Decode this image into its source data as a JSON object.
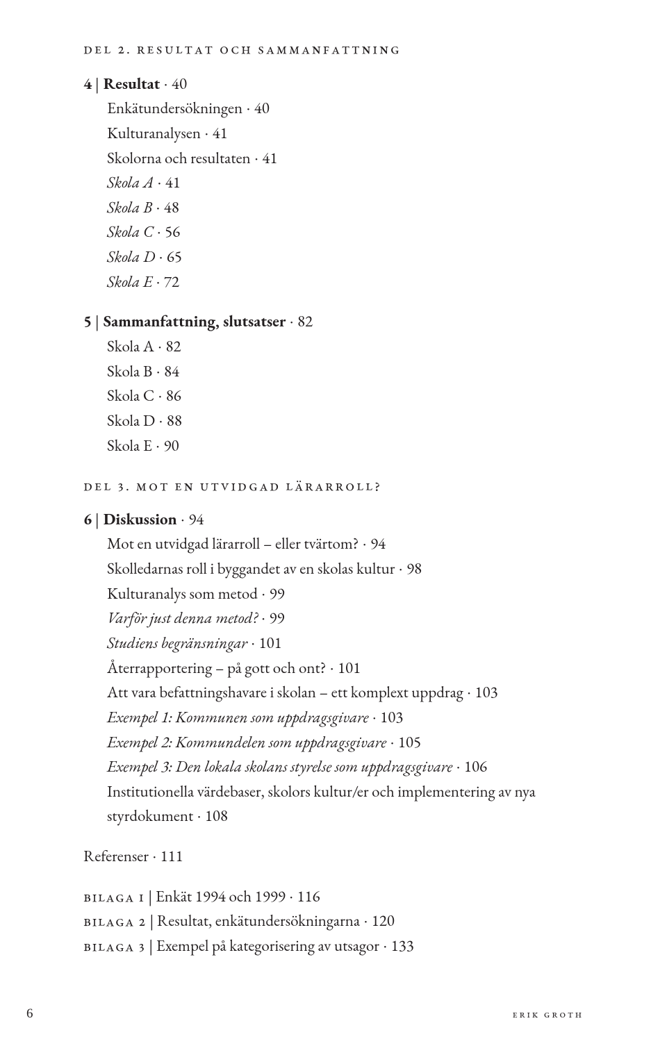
{
  "dot": "·",
  "pipe": "|",
  "part2": {
    "label": "del 2. resultat och sammanfattning"
  },
  "ch4": {
    "num": "4",
    "title": "Resultat",
    "page": "40",
    "items": [
      {
        "label": "Enkätundersökningen",
        "page": "40",
        "italic": false
      },
      {
        "label": "Kulturanalysen",
        "page": "41",
        "italic": false
      },
      {
        "label": "Skolorna och resultaten",
        "page": "41",
        "italic": false
      },
      {
        "label": "Skola A",
        "page": "41",
        "italic": true
      },
      {
        "label": "Skola B",
        "page": "48",
        "italic": true
      },
      {
        "label": "Skola C",
        "page": "56",
        "italic": true
      },
      {
        "label": "Skola D",
        "page": "65",
        "italic": true
      },
      {
        "label": "Skola E",
        "page": "72",
        "italic": true
      }
    ]
  },
  "ch5": {
    "num": "5",
    "title": "Sammanfattning, slutsatser",
    "page": "82",
    "items": [
      {
        "label": "Skola A",
        "page": "82"
      },
      {
        "label": "Skola B",
        "page": "84"
      },
      {
        "label": "Skola C",
        "page": "86"
      },
      {
        "label": "Skola D",
        "page": "88"
      },
      {
        "label": "Skola E",
        "page": "90"
      }
    ]
  },
  "part3": {
    "label": "del 3. mot en utvidgad lärarroll?"
  },
  "ch6": {
    "num": "6",
    "title": "Diskussion",
    "page": "94",
    "items": [
      {
        "label": "Mot en utvidgad lärarroll – eller tvärtom?",
        "page": "94",
        "italic": false
      },
      {
        "label": "Skolledarnas roll i byggandet av en skolas kultur",
        "page": "98",
        "italic": false
      },
      {
        "label": "Kulturanalys som metod",
        "page": "99",
        "italic": false
      },
      {
        "label": "Varför just denna metod?",
        "page": "99",
        "italic": true
      },
      {
        "label": "Studiens begränsningar",
        "page": "101",
        "italic": true
      },
      {
        "label": "Återrapportering – på gott och ont?",
        "page": "101",
        "italic": false
      },
      {
        "label": "Att vara befattningshavare i skolan – ett komplext uppdrag",
        "page": "103",
        "italic": false
      },
      {
        "label": "Exempel 1: Kommunen som uppdragsgivare",
        "page": "103",
        "italic": true
      },
      {
        "label": "Exempel 2: Kommundelen som uppdragsgivare",
        "page": "105",
        "italic": true
      },
      {
        "label": "Exempel 3: Den lokala skolans styrelse som uppdragsgivare",
        "page": "106",
        "italic": true
      },
      {
        "label": "Institutionella värdebaser, skolors kultur/er och implementering av nya styrdokument",
        "page": "108",
        "italic": false,
        "multiline": true
      }
    ]
  },
  "references": {
    "label": "Referenser",
    "page": "111"
  },
  "bilagor": [
    {
      "prefix": "bilaga 1",
      "label": "Enkät 1994 och 1999",
      "page": "116"
    },
    {
      "prefix": "bilaga 2",
      "label": "Resultat, enkätundersökningarna",
      "page": "120"
    },
    {
      "prefix": "bilaga 3",
      "label": "Exempel på kategorisering av utsagor",
      "page": "133"
    }
  ],
  "footer": {
    "page_number": "6",
    "author": "erik groth"
  }
}
